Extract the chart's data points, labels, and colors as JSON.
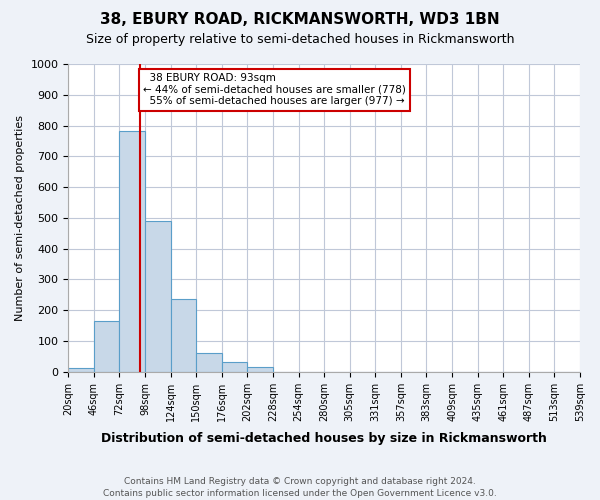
{
  "title": "38, EBURY ROAD, RICKMANSWORTH, WD3 1BN",
  "subtitle": "Size of property relative to semi-detached houses in Rickmansworth",
  "xlabel": "Distribution of semi-detached houses by size in Rickmansworth",
  "ylabel": "Number of semi-detached properties",
  "footnote1": "Contains HM Land Registry data © Crown copyright and database right 2024.",
  "footnote2": "Contains public sector information licensed under the Open Government Licence v3.0.",
  "bin_labels": [
    "20sqm",
    "46sqm",
    "72sqm",
    "98sqm",
    "124sqm",
    "150sqm",
    "176sqm",
    "202sqm",
    "228sqm",
    "254sqm",
    "280sqm",
    "305sqm",
    "331sqm",
    "357sqm",
    "383sqm",
    "409sqm",
    "435sqm",
    "461sqm",
    "487sqm",
    "513sqm",
    "539sqm"
  ],
  "bar_heights": [
    11,
    165,
    783,
    490,
    238,
    62,
    31,
    15,
    0,
    0,
    0,
    0,
    0,
    0,
    0,
    0,
    0,
    0,
    0,
    0
  ],
  "bar_color": "#c8d8e8",
  "bar_edge_color": "#5a9ec9",
  "property_label": "38 EBURY ROAD: 93sqm",
  "pct_smaller": 44,
  "pct_larger": 55,
  "n_smaller": 778,
  "n_larger": 977,
  "vline_color": "#cc0000",
  "annotation_box_color": "#cc0000",
  "ylim": [
    0,
    1000
  ],
  "yticks": [
    0,
    100,
    200,
    300,
    400,
    500,
    600,
    700,
    800,
    900,
    1000
  ],
  "grid_color": "#c0c8d8",
  "bg_color": "#eef2f8",
  "plot_bg_color": "#ffffff",
  "vline_x_bin": 2.81
}
